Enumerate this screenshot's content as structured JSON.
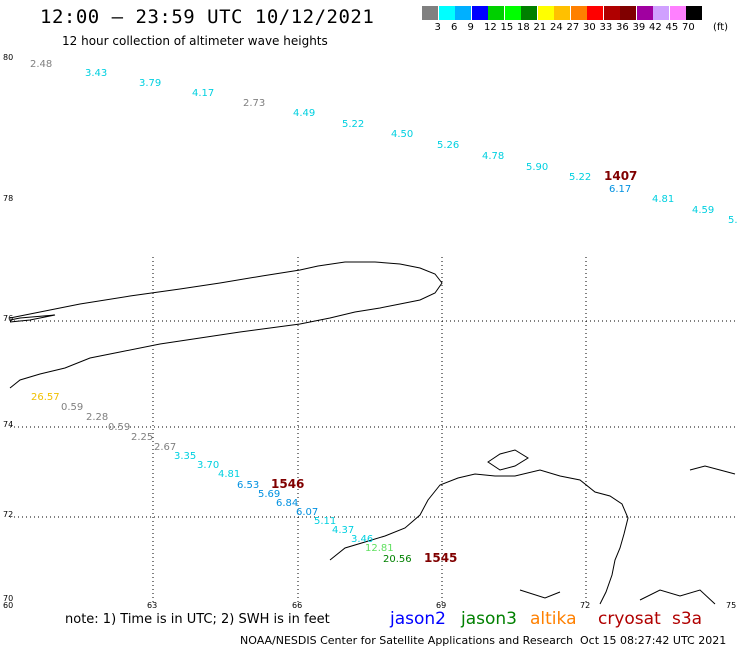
{
  "title": "12:00 – 23:59 UTC 10/12/2021",
  "subtitle": "12 hour collection of altimeter wave heights",
  "note": "note:  1) Time is in UTC; 2) SWH is in feet",
  "footer": "NOAA/NESDIS Center for Satellite Applications and Research",
  "timestamp": "Oct 15 08:27:42 UTC 2021",
  "legend": {
    "unit": "(ft)",
    "colors": [
      "#808080",
      "#00ffff",
      "#00b0ff",
      "#0000ff",
      "#00d000",
      "#00ff00",
      "#008000",
      "#ffff00",
      "#ffc000",
      "#ff8000",
      "#ff0000",
      "#b00000",
      "#800000",
      "#a000a0",
      "#d0a0ff",
      "#ff80ff",
      "#000000"
    ],
    "labels": [
      "3",
      "6",
      "9",
      "12",
      "15",
      "18",
      "21",
      "24",
      "27",
      "30",
      "33",
      "36",
      "39",
      "42",
      "45",
      "70"
    ]
  },
  "axes": {
    "lat_labels": [
      "80",
      "78",
      "76",
      "74",
      "72",
      "70"
    ],
    "lon_labels": [
      "60",
      "63",
      "66",
      "69",
      "72",
      "75"
    ]
  },
  "satellites": [
    {
      "name": "jason2",
      "color": "#0000ff"
    },
    {
      "name": "jason3",
      "color": "#008000"
    },
    {
      "name": "altika",
      "color": "#ff8000"
    },
    {
      "name": "cryosat",
      "color": "#b00000"
    },
    {
      "name": "s3a",
      "color": "#b00000"
    }
  ],
  "wave_labels": [
    {
      "text": "2.48",
      "color": "#808080"
    },
    {
      "text": "3.43",
      "color": "#00d0e0"
    },
    {
      "text": "3.79",
      "color": "#00d0e0"
    },
    {
      "text": "4.17",
      "color": "#00d0e0"
    },
    {
      "text": "2.73",
      "color": "#808080"
    },
    {
      "text": "4.49",
      "color": "#00d0e0"
    },
    {
      "text": "5.22",
      "color": "#00d0e0"
    },
    {
      "text": "4.50",
      "color": "#00d0e0"
    },
    {
      "text": "5.26",
      "color": "#00d0e0"
    },
    {
      "text": "4.78",
      "color": "#00d0e0"
    },
    {
      "text": "5.90",
      "color": "#00d0e0"
    },
    {
      "text": "5.22",
      "color": "#00d0e0"
    },
    {
      "text": "1407",
      "color": "#800000"
    },
    {
      "text": "6.17",
      "color": "#0090e0"
    },
    {
      "text": "4.81",
      "color": "#00d0e0"
    },
    {
      "text": "4.59",
      "color": "#00d0e0"
    },
    {
      "text": "5.",
      "color": "#00d0e0"
    },
    {
      "text": "26.57",
      "color": "#f0c000"
    },
    {
      "text": "0.59",
      "color": "#808080"
    },
    {
      "text": "2.28",
      "color": "#808080"
    },
    {
      "text": "0.59",
      "color": "#808080"
    },
    {
      "text": "2.25",
      "color": "#808080"
    },
    {
      "text": "2.67",
      "color": "#808080"
    },
    {
      "text": "3.35",
      "color": "#00d0e0"
    },
    {
      "text": "3.70",
      "color": "#00d0e0"
    },
    {
      "text": "4.81",
      "color": "#00d0e0"
    },
    {
      "text": "6.53",
      "color": "#0090e0"
    },
    {
      "text": "1546",
      "color": "#800000"
    },
    {
      "text": "5.69",
      "color": "#0090e0"
    },
    {
      "text": "6.84",
      "color": "#0090e0"
    },
    {
      "text": "6.07",
      "color": "#0090e0"
    },
    {
      "text": "5.11",
      "color": "#00d0e0"
    },
    {
      "text": "4.37",
      "color": "#00d0e0"
    },
    {
      "text": "3.46",
      "color": "#00d0e0"
    },
    {
      "text": "12.81",
      "color": "#60e060"
    },
    {
      "text": "20.56",
      "color": "#008000"
    },
    {
      "text": "1545",
      "color": "#800000"
    }
  ]
}
